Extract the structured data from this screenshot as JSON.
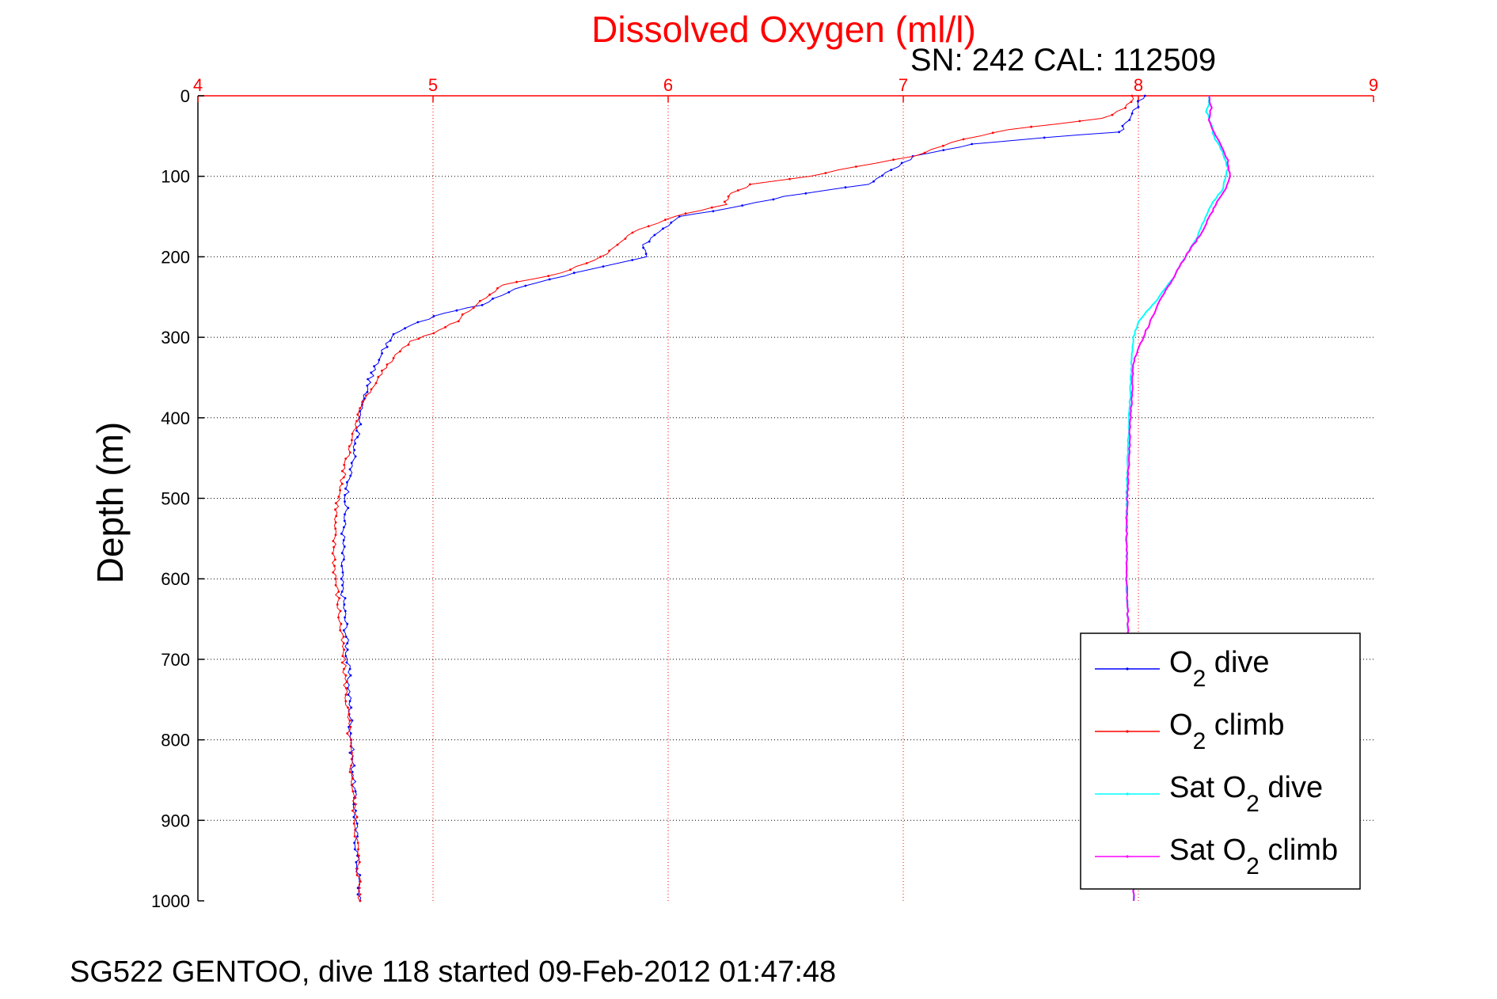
{
  "chart_data": {
    "type": "line",
    "title": "Dissolved Oxygen (ml/l)",
    "subtitle": "SN: 242  CAL: 112509",
    "xlabel": "Dissolved Oxygen (ml/l)",
    "ylabel": "Depth (m)",
    "xlim": [
      4,
      9
    ],
    "ylim": [
      0,
      1000
    ],
    "y_reversed": true,
    "x_axis_position": "top",
    "xticks": [
      "4",
      "5",
      "6",
      "7",
      "8",
      "9"
    ],
    "yticks": [
      "0",
      "100",
      "200",
      "300",
      "400",
      "500",
      "600",
      "700",
      "800",
      "900",
      "1000"
    ],
    "grid": true,
    "legend_position": "bottom-right",
    "series": [
      {
        "name": "O2 dive",
        "color": "#0000ff",
        "points": [
          [
            8.02,
            0
          ],
          [
            8.0,
            10
          ],
          [
            7.96,
            30
          ],
          [
            7.92,
            45
          ],
          [
            7.6,
            52
          ],
          [
            7.3,
            60
          ],
          [
            7.05,
            75
          ],
          [
            6.95,
            92
          ],
          [
            6.85,
            110
          ],
          [
            6.5,
            125
          ],
          [
            6.25,
            140
          ],
          [
            6.05,
            150
          ],
          [
            5.98,
            165
          ],
          [
            5.9,
            185
          ],
          [
            5.9,
            200
          ],
          [
            5.6,
            220
          ],
          [
            5.35,
            240
          ],
          [
            5.2,
            260
          ],
          [
            5.05,
            270
          ],
          [
            4.9,
            285
          ],
          [
            4.82,
            300
          ],
          [
            4.78,
            320
          ],
          [
            4.72,
            360
          ],
          [
            4.68,
            420
          ],
          [
            4.64,
            480
          ],
          [
            4.62,
            540
          ],
          [
            4.61,
            600
          ],
          [
            4.63,
            660
          ],
          [
            4.64,
            720
          ],
          [
            4.65,
            780
          ],
          [
            4.66,
            840
          ],
          [
            4.67,
            900
          ],
          [
            4.68,
            960
          ],
          [
            4.69,
            1000
          ]
        ]
      },
      {
        "name": "O2 climb",
        "color": "#ff0000",
        "points": [
          [
            7.98,
            0
          ],
          [
            7.95,
            15
          ],
          [
            7.85,
            28
          ],
          [
            7.45,
            42
          ],
          [
            7.2,
            58
          ],
          [
            7.05,
            75
          ],
          [
            6.8,
            88
          ],
          [
            6.6,
            100
          ],
          [
            6.35,
            110
          ],
          [
            6.25,
            125
          ],
          [
            6.25,
            135
          ],
          [
            6.02,
            150
          ],
          [
            5.85,
            170
          ],
          [
            5.72,
            200
          ],
          [
            5.55,
            220
          ],
          [
            5.3,
            235
          ],
          [
            5.2,
            255
          ],
          [
            5.1,
            280
          ],
          [
            5.0,
            295
          ],
          [
            4.9,
            305
          ],
          [
            4.82,
            330
          ],
          [
            4.7,
            380
          ],
          [
            4.66,
            420
          ],
          [
            4.62,
            470
          ],
          [
            4.58,
            530
          ],
          [
            4.58,
            580
          ],
          [
            4.6,
            640
          ],
          [
            4.62,
            700
          ],
          [
            4.64,
            780
          ],
          [
            4.66,
            860
          ],
          [
            4.68,
            940
          ],
          [
            4.69,
            1000
          ]
        ]
      },
      {
        "name": "Sat O2 dive",
        "color": "#00ffff",
        "points": [
          [
            8.3,
            0
          ],
          [
            8.3,
            10
          ],
          [
            8.29,
            20
          ],
          [
            8.31,
            35
          ],
          [
            8.32,
            50
          ],
          [
            8.36,
            70
          ],
          [
            8.38,
            90
          ],
          [
            8.36,
            115
          ],
          [
            8.3,
            140
          ],
          [
            8.25,
            175
          ],
          [
            8.2,
            200
          ],
          [
            8.14,
            230
          ],
          [
            8.06,
            260
          ],
          [
            8.0,
            280
          ],
          [
            7.98,
            300
          ],
          [
            7.97,
            340
          ],
          [
            7.96,
            400
          ],
          [
            7.95,
            500
          ],
          [
            7.95,
            600
          ],
          [
            7.96,
            700
          ],
          [
            7.97,
            800
          ],
          [
            7.98,
            900
          ],
          [
            7.98,
            1000
          ]
        ]
      },
      {
        "name": "Sat O2 climb",
        "color": "#ff00ff",
        "points": [
          [
            8.3,
            0
          ],
          [
            8.31,
            15
          ],
          [
            8.3,
            30
          ],
          [
            8.32,
            45
          ],
          [
            8.35,
            60
          ],
          [
            8.38,
            80
          ],
          [
            8.39,
            100
          ],
          [
            8.37,
            115
          ],
          [
            8.32,
            140
          ],
          [
            8.27,
            170
          ],
          [
            8.2,
            200
          ],
          [
            8.15,
            225
          ],
          [
            8.1,
            250
          ],
          [
            8.06,
            275
          ],
          [
            8.02,
            300
          ],
          [
            7.98,
            330
          ],
          [
            7.97,
            380
          ],
          [
            7.96,
            450
          ],
          [
            7.95,
            520
          ],
          [
            7.95,
            600
          ],
          [
            7.96,
            700
          ],
          [
            7.97,
            800
          ],
          [
            7.98,
            900
          ],
          [
            7.98,
            1000
          ]
        ]
      }
    ]
  },
  "legend": {
    "items": [
      {
        "prefix": "O",
        "sub": "2",
        "suffix": " dive"
      },
      {
        "prefix": "O",
        "sub": "2",
        "suffix": " climb"
      },
      {
        "prefix": "Sat O",
        "sub": "2",
        "suffix": " dive"
      },
      {
        "prefix": "Sat O",
        "sub": "2",
        "suffix": " climb"
      }
    ]
  },
  "caption": "SG522 GENTOO, dive 118 started 09-Feb-2012 01:47:48",
  "colors": {
    "title": "#ff0000",
    "axis_top": "#ff0000",
    "axis_left": "#000000",
    "xgrid": "#ff0000",
    "ygrid": "#000000"
  }
}
